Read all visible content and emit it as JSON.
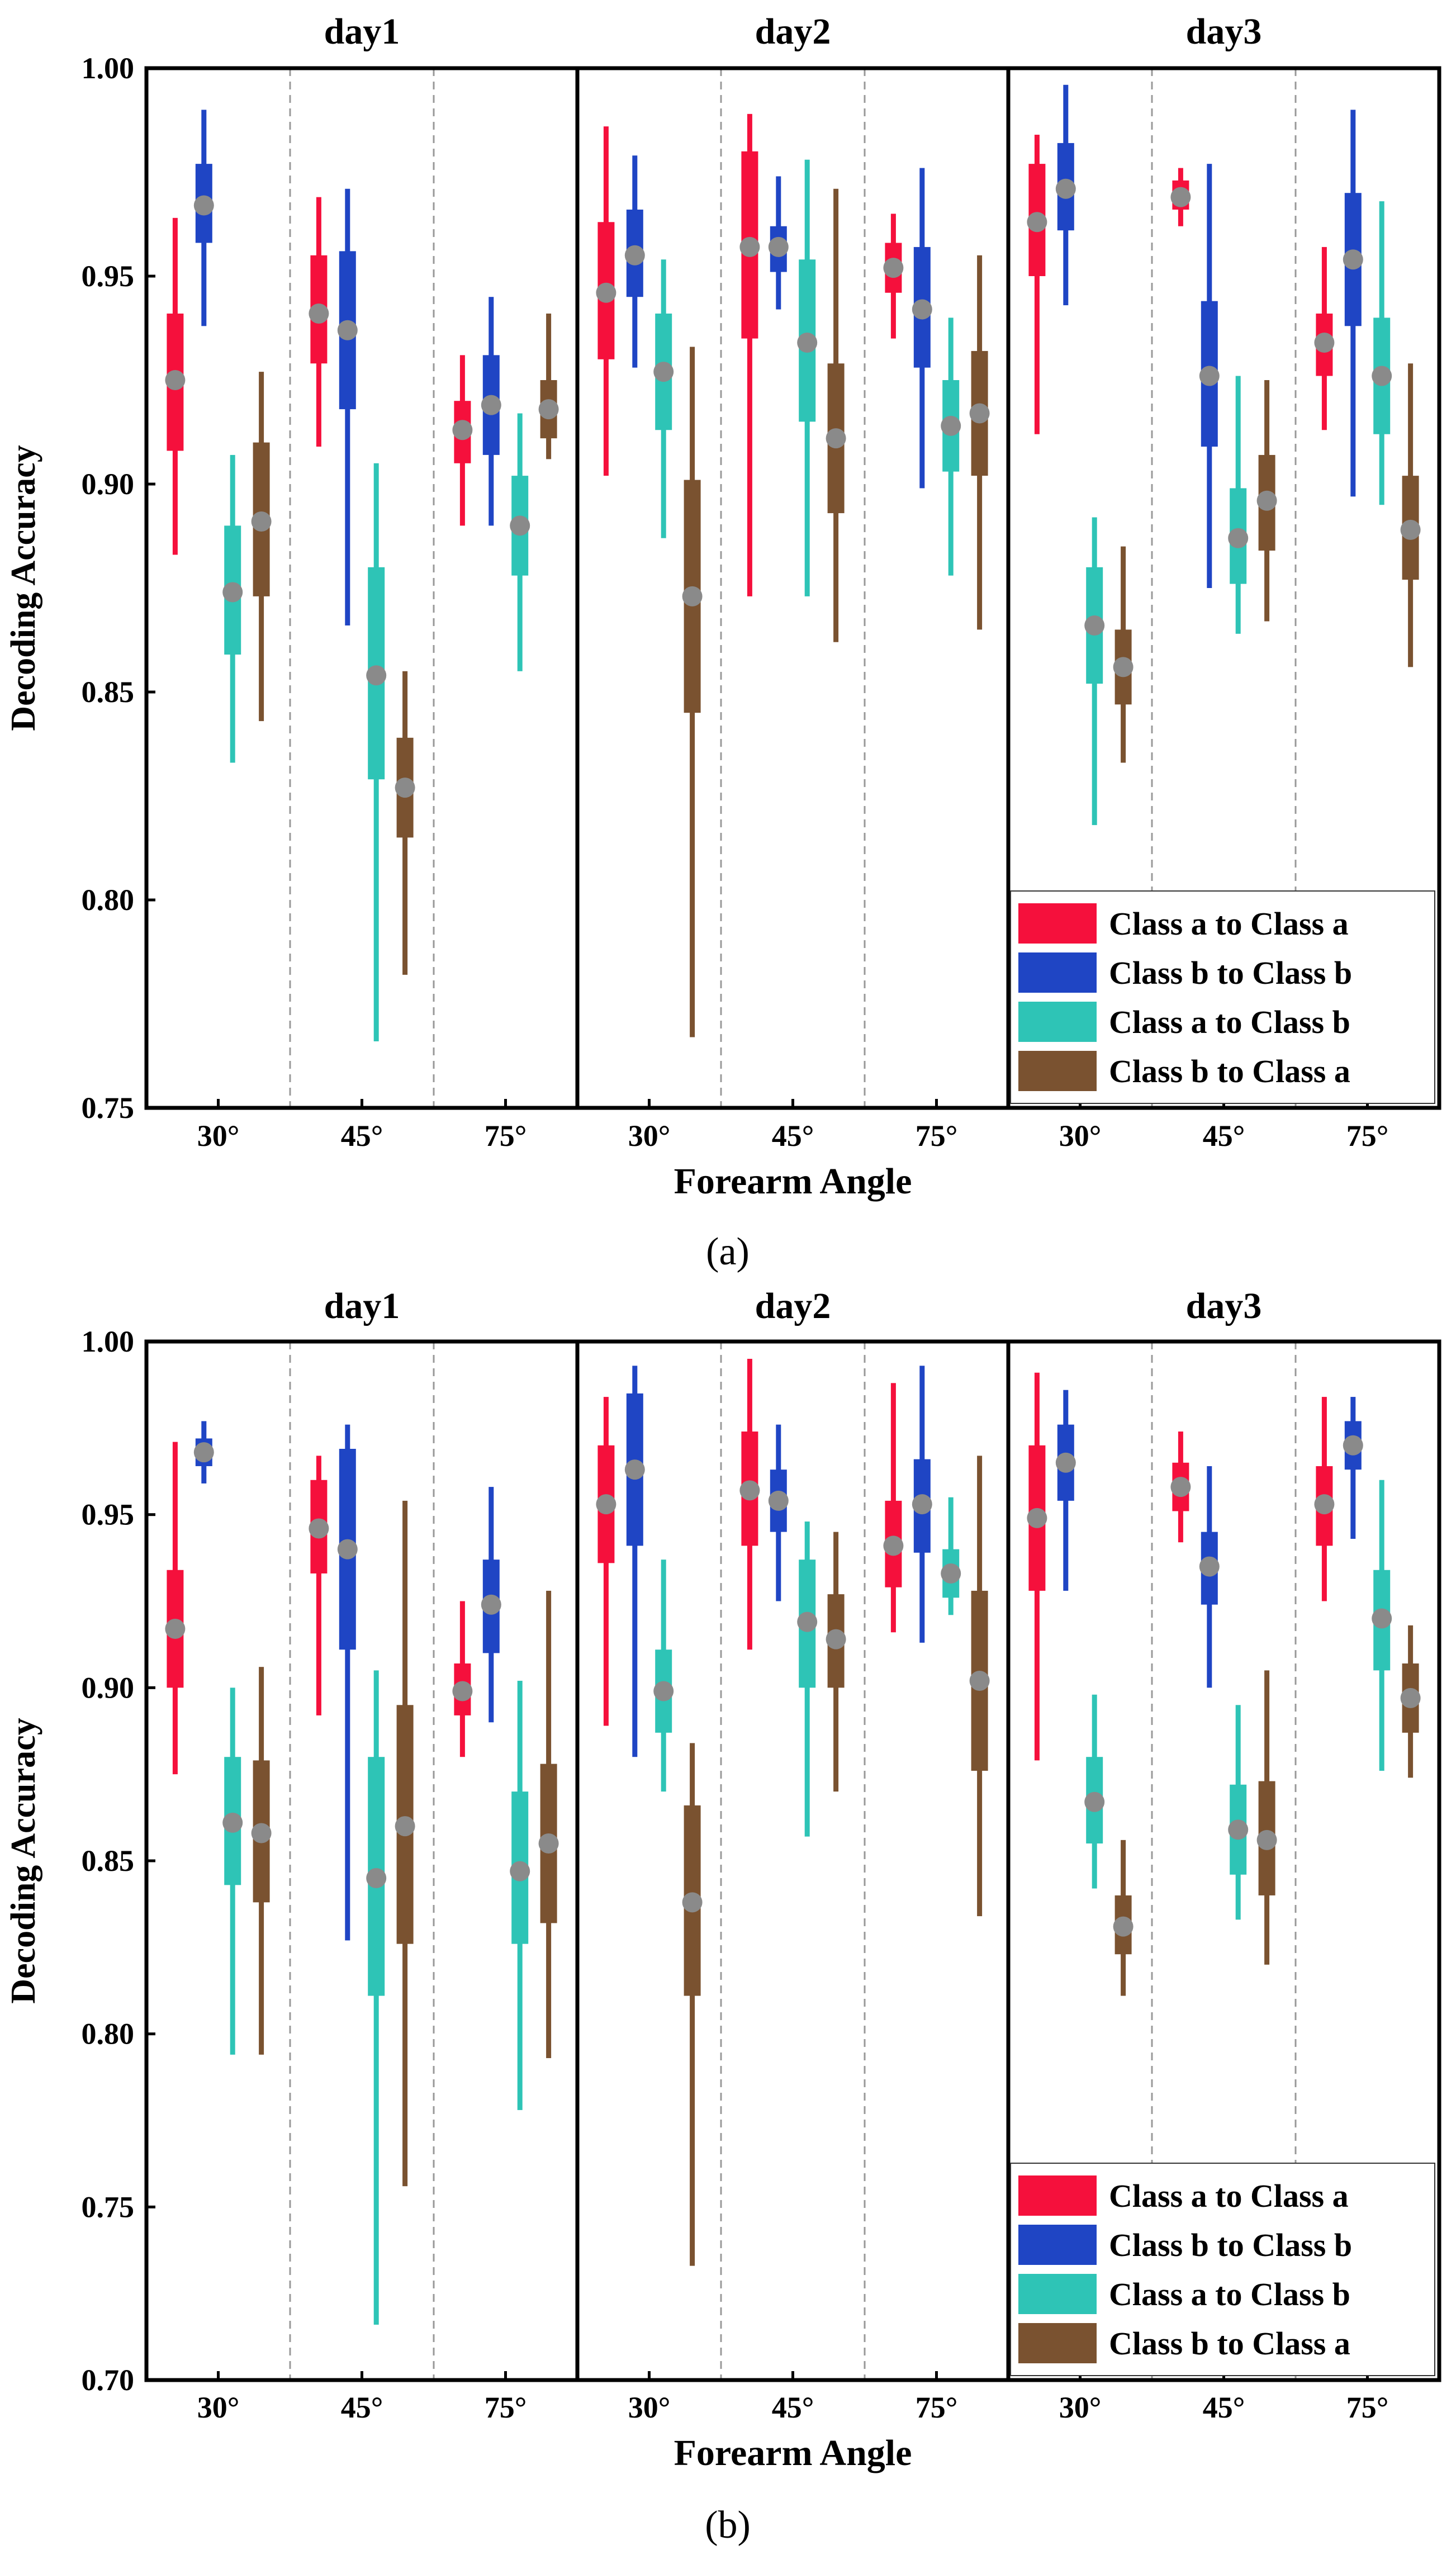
{
  "colors": {
    "series": [
      "#f5103c",
      "#1f45c4",
      "#2ec4b6",
      "#7a5230"
    ],
    "median": "#8a8a8a",
    "frame": "#000000",
    "separator": "#999999"
  },
  "chart_data": [
    {
      "type": "box",
      "panel_label": "(a)",
      "days": [
        "day1",
        "day2",
        "day3"
      ],
      "angles": [
        "30°",
        "45°",
        "75°"
      ],
      "xlabel": "Forearm Angle",
      "ylabel": "Decoding Accuracy",
      "ylim": [
        0.75,
        1.0
      ],
      "yticks": [
        "0.75",
        "0.80",
        "0.85",
        "0.90",
        "0.95",
        "1.00"
      ],
      "legend": {
        "placement": "bottom-right",
        "entries": [
          "Class a to Class a",
          "Class b to Class b",
          "Class a to Class b",
          "Class b to Class a"
        ]
      },
      "series": [
        {
          "name": "Class a to Class a",
          "boxes": [
            [
              0.883,
              0.908,
              0.925,
              0.941,
              0.964
            ],
            [
              0.909,
              0.929,
              0.941,
              0.955,
              0.969
            ],
            [
              0.89,
              0.905,
              0.913,
              0.92,
              0.931
            ],
            [
              0.902,
              0.93,
              0.946,
              0.963,
              0.986
            ],
            [
              0.873,
              0.935,
              0.957,
              0.98,
              0.989
            ],
            [
              0.935,
              0.946,
              0.952,
              0.958,
              0.965
            ],
            [
              0.912,
              0.95,
              0.963,
              0.977,
              0.984
            ],
            [
              0.962,
              0.966,
              0.969,
              0.973,
              0.976
            ],
            [
              0.913,
              0.926,
              0.934,
              0.941,
              0.957
            ]
          ]
        },
        {
          "name": "Class b to Class b",
          "boxes": [
            [
              0.938,
              0.958,
              0.967,
              0.977,
              0.99
            ],
            [
              0.866,
              0.918,
              0.937,
              0.956,
              0.971
            ],
            [
              0.89,
              0.907,
              0.919,
              0.931,
              0.945
            ],
            [
              0.928,
              0.945,
              0.955,
              0.966,
              0.979
            ],
            [
              0.942,
              0.951,
              0.957,
              0.962,
              0.974
            ],
            [
              0.899,
              0.928,
              0.942,
              0.957,
              0.976
            ],
            [
              0.943,
              0.961,
              0.971,
              0.982,
              0.996
            ],
            [
              0.875,
              0.909,
              0.926,
              0.944,
              0.977
            ],
            [
              0.897,
              0.938,
              0.954,
              0.97,
              0.99
            ]
          ]
        },
        {
          "name": "Class a to Class b",
          "boxes": [
            [
              0.833,
              0.859,
              0.874,
              0.89,
              0.907
            ],
            [
              0.766,
              0.829,
              0.854,
              0.88,
              0.905
            ],
            [
              0.855,
              0.878,
              0.89,
              0.902,
              0.917
            ],
            [
              0.887,
              0.913,
              0.927,
              0.941,
              0.954
            ],
            [
              0.873,
              0.915,
              0.934,
              0.954,
              0.978
            ],
            [
              0.878,
              0.903,
              0.914,
              0.925,
              0.94
            ],
            [
              0.818,
              0.852,
              0.866,
              0.88,
              0.892
            ],
            [
              0.864,
              0.876,
              0.887,
              0.899,
              0.926
            ],
            [
              0.895,
              0.912,
              0.926,
              0.94,
              0.968
            ]
          ]
        },
        {
          "name": "Class b to Class a",
          "boxes": [
            [
              0.843,
              0.873,
              0.891,
              0.91,
              0.927
            ],
            [
              0.782,
              0.815,
              0.827,
              0.839,
              0.855
            ],
            [
              0.906,
              0.911,
              0.918,
              0.925,
              0.941
            ],
            [
              0.767,
              0.845,
              0.873,
              0.901,
              0.933
            ],
            [
              0.862,
              0.893,
              0.911,
              0.929,
              0.971
            ],
            [
              0.865,
              0.902,
              0.917,
              0.932,
              0.955
            ],
            [
              0.833,
              0.847,
              0.856,
              0.865,
              0.885
            ],
            [
              0.867,
              0.884,
              0.896,
              0.907,
              0.925
            ],
            [
              0.856,
              0.877,
              0.889,
              0.902,
              0.929
            ]
          ]
        }
      ]
    },
    {
      "type": "box",
      "panel_label": "(b)",
      "days": [
        "day1",
        "day2",
        "day3"
      ],
      "angles": [
        "30°",
        "45°",
        "75°"
      ],
      "xlabel": "Forearm Angle",
      "ylabel": "Decoding Accuracy",
      "ylim": [
        0.7,
        1.0
      ],
      "yticks": [
        "0.70",
        "0.75",
        "0.80",
        "0.85",
        "0.90",
        "0.95",
        "1.00"
      ],
      "legend": {
        "placement": "bottom-right",
        "entries": [
          "Class a to Class a",
          "Class b to Class b",
          "Class a to Class b",
          "Class b to Class a"
        ]
      },
      "series": [
        {
          "name": "Class a to Class a",
          "boxes": [
            [
              0.875,
              0.9,
              0.917,
              0.934,
              0.971
            ],
            [
              0.892,
              0.933,
              0.946,
              0.96,
              0.967
            ],
            [
              0.88,
              0.892,
              0.899,
              0.907,
              0.925
            ],
            [
              0.889,
              0.936,
              0.953,
              0.97,
              0.984
            ],
            [
              0.911,
              0.941,
              0.957,
              0.974,
              0.995
            ],
            [
              0.916,
              0.929,
              0.941,
              0.954,
              0.988
            ],
            [
              0.879,
              0.928,
              0.949,
              0.97,
              0.991
            ],
            [
              0.942,
              0.951,
              0.958,
              0.965,
              0.974
            ],
            [
              0.925,
              0.941,
              0.953,
              0.964,
              0.984
            ]
          ]
        },
        {
          "name": "Class b to Class b",
          "boxes": [
            [
              0.959,
              0.964,
              0.968,
              0.972,
              0.977
            ],
            [
              0.827,
              0.911,
              0.94,
              0.969,
              0.976
            ],
            [
              0.89,
              0.91,
              0.924,
              0.937,
              0.958
            ],
            [
              0.88,
              0.941,
              0.963,
              0.985,
              0.993
            ],
            [
              0.925,
              0.945,
              0.954,
              0.963,
              0.976
            ],
            [
              0.913,
              0.939,
              0.953,
              0.966,
              0.993
            ],
            [
              0.928,
              0.954,
              0.965,
              0.976,
              0.986
            ],
            [
              0.9,
              0.924,
              0.935,
              0.945,
              0.964
            ],
            [
              0.943,
              0.963,
              0.97,
              0.977,
              0.984
            ]
          ]
        },
        {
          "name": "Class a to Class b",
          "boxes": [
            [
              0.794,
              0.843,
              0.861,
              0.88,
              0.9
            ],
            [
              0.716,
              0.811,
              0.845,
              0.88,
              0.905
            ],
            [
              0.778,
              0.826,
              0.847,
              0.87,
              0.902
            ],
            [
              0.87,
              0.887,
              0.899,
              0.911,
              0.937
            ],
            [
              0.857,
              0.9,
              0.919,
              0.937,
              0.948
            ],
            [
              0.921,
              0.926,
              0.933,
              0.94,
              0.955
            ],
            [
              0.842,
              0.855,
              0.867,
              0.88,
              0.898
            ],
            [
              0.833,
              0.846,
              0.859,
              0.872,
              0.895
            ],
            [
              0.876,
              0.905,
              0.92,
              0.934,
              0.96
            ]
          ]
        },
        {
          "name": "Class b to Class a",
          "boxes": [
            [
              0.794,
              0.838,
              0.858,
              0.879,
              0.906
            ],
            [
              0.756,
              0.826,
              0.86,
              0.895,
              0.954
            ],
            [
              0.793,
              0.832,
              0.855,
              0.878,
              0.928
            ],
            [
              0.733,
              0.811,
              0.838,
              0.866,
              0.884
            ],
            [
              0.87,
              0.9,
              0.914,
              0.927,
              0.945
            ],
            [
              0.834,
              0.876,
              0.902,
              0.928,
              0.967
            ],
            [
              0.811,
              0.823,
              0.831,
              0.84,
              0.856
            ],
            [
              0.82,
              0.84,
              0.856,
              0.873,
              0.905
            ],
            [
              0.874,
              0.887,
              0.897,
              0.907,
              0.918
            ]
          ]
        }
      ]
    }
  ]
}
